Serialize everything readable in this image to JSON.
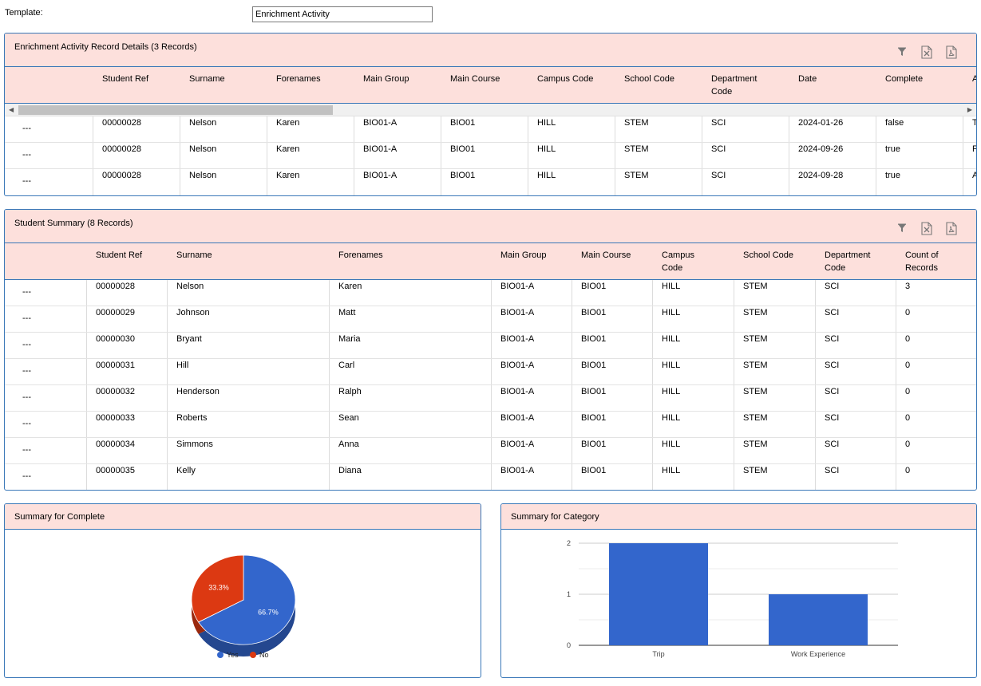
{
  "template": {
    "label": "Template:",
    "value": "Enrichment Activity"
  },
  "record_details": {
    "title": "Enrichment Activity Record Details (3 Records)",
    "columns": [
      "Student Ref",
      "Surname",
      "Forenames",
      "Main Group",
      "Main Course",
      "Campus Code",
      "School Code",
      "Department Code",
      "Date",
      "Complete",
      "A"
    ],
    "rows": [
      {
        "marker": "---",
        "cells": [
          "00000028",
          "Nelson",
          "Karen",
          "BIO01-A",
          "BIO01",
          "HILL",
          "STEM",
          "SCI",
          "2024-01-26",
          "false",
          "T"
        ]
      },
      {
        "marker": "---",
        "cells": [
          "00000028",
          "Nelson",
          "Karen",
          "BIO01-A",
          "BIO01",
          "HILL",
          "STEM",
          "SCI",
          "2024-09-26",
          "true",
          "F"
        ]
      },
      {
        "marker": "---",
        "cells": [
          "00000028",
          "Nelson",
          "Karen",
          "BIO01-A",
          "BIO01",
          "HILL",
          "STEM",
          "SCI",
          "2024-09-28",
          "true",
          "A"
        ]
      }
    ]
  },
  "student_summary": {
    "title": "Student Summary (8 Records)",
    "columns": [
      "Student Ref",
      "Surname",
      "Forenames",
      "Main Group",
      "Main Course",
      "Campus Code",
      "School Code",
      "Department Code",
      "Count of Records"
    ],
    "rows": [
      {
        "marker": "---",
        "cells": [
          "00000028",
          "Nelson",
          "Karen",
          "BIO01-A",
          "BIO01",
          "HILL",
          "STEM",
          "SCI",
          "3"
        ]
      },
      {
        "marker": "---",
        "cells": [
          "00000029",
          "Johnson",
          "Matt",
          "BIO01-A",
          "BIO01",
          "HILL",
          "STEM",
          "SCI",
          "0"
        ]
      },
      {
        "marker": "---",
        "cells": [
          "00000030",
          "Bryant",
          "Maria",
          "BIO01-A",
          "BIO01",
          "HILL",
          "STEM",
          "SCI",
          "0"
        ]
      },
      {
        "marker": "---",
        "cells": [
          "00000031",
          "Hill",
          "Carl",
          "BIO01-A",
          "BIO01",
          "HILL",
          "STEM",
          "SCI",
          "0"
        ]
      },
      {
        "marker": "---",
        "cells": [
          "00000032",
          "Henderson",
          "Ralph",
          "BIO01-A",
          "BIO01",
          "HILL",
          "STEM",
          "SCI",
          "0"
        ]
      },
      {
        "marker": "---",
        "cells": [
          "00000033",
          "Roberts",
          "Sean",
          "BIO01-A",
          "BIO01",
          "HILL",
          "STEM",
          "SCI",
          "0"
        ]
      },
      {
        "marker": "---",
        "cells": [
          "00000034",
          "Simmons",
          "Anna",
          "BIO01-A",
          "BIO01",
          "HILL",
          "STEM",
          "SCI",
          "0"
        ]
      },
      {
        "marker": "---",
        "cells": [
          "00000035",
          "Kelly",
          "Diana",
          "BIO01-A",
          "BIO01",
          "HILL",
          "STEM",
          "SCI",
          "0"
        ]
      }
    ]
  },
  "toolbar_icons": [
    "filter-icon",
    "excel-export-icon",
    "pdf-export-icon"
  ],
  "chart_data": [
    {
      "type": "pie",
      "title": "Summary for Complete",
      "slices": [
        {
          "label": "Yes",
          "value": 66.7,
          "display": "66.7%",
          "color": "#3366cc"
        },
        {
          "label": "No",
          "value": 33.3,
          "display": "33.3%",
          "color": "#dc3912"
        }
      ],
      "legend": "bottom"
    },
    {
      "type": "bar",
      "title": "Summary for Category",
      "categories": [
        "Trip",
        "Work Experience"
      ],
      "values": [
        2,
        1
      ],
      "ylim": [
        0,
        2
      ],
      "yticks": [
        "0",
        "1",
        "2"
      ],
      "color": "#3366cc",
      "grid": true
    }
  ]
}
